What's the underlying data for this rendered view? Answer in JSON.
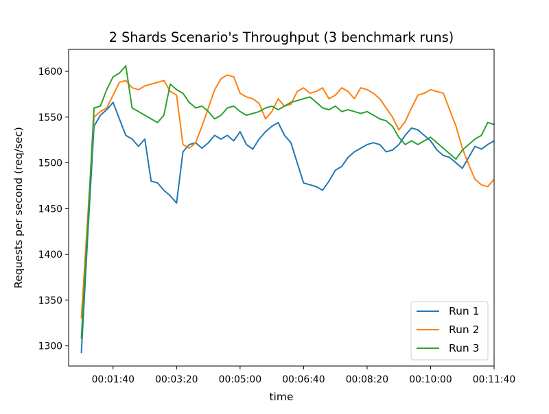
{
  "chart_data": {
    "type": "line",
    "title": "2 Shards Scenario's Throughput (3 benchmark runs)",
    "xlabel": "time",
    "ylabel": "Requests per second (req/sec)",
    "xlim": [
      "00:00:30",
      "00:11:40"
    ],
    "ylim": [
      1278,
      1624
    ],
    "grid": false,
    "legend_position": "lower-right",
    "x_ticks": [
      "00:01:40",
      "00:03:20",
      "00:05:00",
      "00:06:40",
      "00:08:20",
      "00:10:00",
      "00:11:40"
    ],
    "y_ticks": [
      1300,
      1350,
      1400,
      1450,
      1500,
      1550,
      1600
    ],
    "series": [
      {
        "name": "Run 1",
        "color": "#1f77b4",
        "points": [
          [
            "00:00:50",
            1292
          ],
          [
            "00:01:00",
            1420
          ],
          [
            "00:01:10",
            1540
          ],
          [
            "00:01:20",
            1552
          ],
          [
            "00:01:30",
            1558
          ],
          [
            "00:01:40",
            1566
          ],
          [
            "00:01:50",
            1548
          ],
          [
            "00:02:00",
            1530
          ],
          [
            "00:02:10",
            1526
          ],
          [
            "00:02:20",
            1518
          ],
          [
            "00:02:30",
            1526
          ],
          [
            "00:02:40",
            1480
          ],
          [
            "00:02:50",
            1478
          ],
          [
            "00:03:00",
            1470
          ],
          [
            "00:03:10",
            1464
          ],
          [
            "00:03:20",
            1456
          ],
          [
            "00:03:30",
            1512
          ],
          [
            "00:03:40",
            1520
          ],
          [
            "00:03:50",
            1522
          ],
          [
            "00:04:00",
            1516
          ],
          [
            "00:04:10",
            1522
          ],
          [
            "00:04:20",
            1530
          ],
          [
            "00:04:30",
            1526
          ],
          [
            "00:04:40",
            1530
          ],
          [
            "00:04:50",
            1524
          ],
          [
            "00:05:00",
            1534
          ],
          [
            "00:05:10",
            1520
          ],
          [
            "00:05:20",
            1515
          ],
          [
            "00:05:30",
            1526
          ],
          [
            "00:05:40",
            1534
          ],
          [
            "00:05:50",
            1540
          ],
          [
            "00:06:00",
            1544
          ],
          [
            "00:06:10",
            1530
          ],
          [
            "00:06:20",
            1522
          ],
          [
            "00:06:30",
            1500
          ],
          [
            "00:06:40",
            1478
          ],
          [
            "00:06:50",
            1476
          ],
          [
            "00:07:00",
            1474
          ],
          [
            "00:07:10",
            1470
          ],
          [
            "00:07:20",
            1480
          ],
          [
            "00:07:30",
            1492
          ],
          [
            "00:07:40",
            1496
          ],
          [
            "00:07:50",
            1506
          ],
          [
            "00:08:00",
            1512
          ],
          [
            "00:08:10",
            1516
          ],
          [
            "00:08:20",
            1520
          ],
          [
            "00:08:30",
            1522
          ],
          [
            "00:08:40",
            1520
          ],
          [
            "00:08:50",
            1512
          ],
          [
            "00:09:00",
            1514
          ],
          [
            "00:09:10",
            1520
          ],
          [
            "00:09:20",
            1530
          ],
          [
            "00:09:30",
            1538
          ],
          [
            "00:09:40",
            1536
          ],
          [
            "00:09:50",
            1530
          ],
          [
            "00:10:00",
            1524
          ],
          [
            "00:10:10",
            1514
          ],
          [
            "00:10:20",
            1508
          ],
          [
            "00:10:30",
            1506
          ],
          [
            "00:10:40",
            1500
          ],
          [
            "00:10:50",
            1494
          ],
          [
            "00:11:00",
            1506
          ],
          [
            "00:11:10",
            1518
          ],
          [
            "00:11:20",
            1515
          ],
          [
            "00:11:30",
            1520
          ],
          [
            "00:11:40",
            1524
          ]
        ]
      },
      {
        "name": "Run 2",
        "color": "#ff7f0e",
        "points": [
          [
            "00:00:50",
            1330
          ],
          [
            "00:01:00",
            1440
          ],
          [
            "00:01:10",
            1550
          ],
          [
            "00:01:20",
            1556
          ],
          [
            "00:01:30",
            1560
          ],
          [
            "00:01:40",
            1574
          ],
          [
            "00:01:50",
            1588
          ],
          [
            "00:02:00",
            1590
          ],
          [
            "00:02:10",
            1582
          ],
          [
            "00:02:20",
            1580
          ],
          [
            "00:02:30",
            1584
          ],
          [
            "00:02:40",
            1586
          ],
          [
            "00:02:50",
            1588
          ],
          [
            "00:03:00",
            1590
          ],
          [
            "00:03:10",
            1578
          ],
          [
            "00:03:20",
            1574
          ],
          [
            "00:03:30",
            1520
          ],
          [
            "00:03:40",
            1516
          ],
          [
            "00:03:50",
            1522
          ],
          [
            "00:04:00",
            1540
          ],
          [
            "00:04:10",
            1560
          ],
          [
            "00:04:20",
            1580
          ],
          [
            "00:04:30",
            1592
          ],
          [
            "00:04:40",
            1596
          ],
          [
            "00:04:50",
            1594
          ],
          [
            "00:05:00",
            1576
          ],
          [
            "00:05:10",
            1572
          ],
          [
            "00:05:20",
            1570
          ],
          [
            "00:05:30",
            1565
          ],
          [
            "00:05:40",
            1548
          ],
          [
            "00:05:50",
            1556
          ],
          [
            "00:06:00",
            1570
          ],
          [
            "00:06:10",
            1562
          ],
          [
            "00:06:20",
            1564
          ],
          [
            "00:06:30",
            1578
          ],
          [
            "00:06:40",
            1582
          ],
          [
            "00:06:50",
            1576
          ],
          [
            "00:07:00",
            1578
          ],
          [
            "00:07:10",
            1582
          ],
          [
            "00:07:20",
            1570
          ],
          [
            "00:07:30",
            1574
          ],
          [
            "00:07:40",
            1582
          ],
          [
            "00:07:50",
            1578
          ],
          [
            "00:08:00",
            1570
          ],
          [
            "00:08:10",
            1582
          ],
          [
            "00:08:20",
            1580
          ],
          [
            "00:08:30",
            1576
          ],
          [
            "00:08:40",
            1570
          ],
          [
            "00:08:50",
            1560
          ],
          [
            "00:09:00",
            1550
          ],
          [
            "00:09:10",
            1536
          ],
          [
            "00:09:20",
            1545
          ],
          [
            "00:09:30",
            1560
          ],
          [
            "00:09:40",
            1574
          ],
          [
            "00:09:50",
            1576
          ],
          [
            "00:10:00",
            1580
          ],
          [
            "00:10:10",
            1578
          ],
          [
            "00:10:20",
            1576
          ],
          [
            "00:10:30",
            1558
          ],
          [
            "00:10:40",
            1540
          ],
          [
            "00:10:50",
            1516
          ],
          [
            "00:11:00",
            1498
          ],
          [
            "00:11:10",
            1482
          ],
          [
            "00:11:20",
            1476
          ],
          [
            "00:11:30",
            1474
          ],
          [
            "00:11:40",
            1482
          ]
        ]
      },
      {
        "name": "Run 3",
        "color": "#2ca02c",
        "points": [
          [
            "00:00:50",
            1308
          ],
          [
            "00:01:00",
            1430
          ],
          [
            "00:01:10",
            1560
          ],
          [
            "00:01:20",
            1562
          ],
          [
            "00:01:30",
            1580
          ],
          [
            "00:01:40",
            1594
          ],
          [
            "00:01:50",
            1598
          ],
          [
            "00:02:00",
            1606
          ],
          [
            "00:02:10",
            1560
          ],
          [
            "00:02:20",
            1556
          ],
          [
            "00:02:30",
            1552
          ],
          [
            "00:02:40",
            1548
          ],
          [
            "00:02:50",
            1544
          ],
          [
            "00:03:00",
            1552
          ],
          [
            "00:03:10",
            1586
          ],
          [
            "00:03:20",
            1580
          ],
          [
            "00:03:30",
            1576
          ],
          [
            "00:03:40",
            1566
          ],
          [
            "00:03:50",
            1560
          ],
          [
            "00:04:00",
            1562
          ],
          [
            "00:04:10",
            1556
          ],
          [
            "00:04:20",
            1548
          ],
          [
            "00:04:30",
            1552
          ],
          [
            "00:04:40",
            1560
          ],
          [
            "00:04:50",
            1562
          ],
          [
            "00:05:00",
            1556
          ],
          [
            "00:05:10",
            1552
          ],
          [
            "00:05:20",
            1554
          ],
          [
            "00:05:30",
            1556
          ],
          [
            "00:05:40",
            1560
          ],
          [
            "00:05:50",
            1562
          ],
          [
            "00:06:00",
            1558
          ],
          [
            "00:06:10",
            1562
          ],
          [
            "00:06:20",
            1566
          ],
          [
            "00:06:30",
            1568
          ],
          [
            "00:06:40",
            1570
          ],
          [
            "00:06:50",
            1572
          ],
          [
            "00:07:00",
            1566
          ],
          [
            "00:07:10",
            1560
          ],
          [
            "00:07:20",
            1558
          ],
          [
            "00:07:30",
            1562
          ],
          [
            "00:07:40",
            1556
          ],
          [
            "00:07:50",
            1558
          ],
          [
            "00:08:00",
            1556
          ],
          [
            "00:08:10",
            1554
          ],
          [
            "00:08:20",
            1556
          ],
          [
            "00:08:30",
            1552
          ],
          [
            "00:08:40",
            1548
          ],
          [
            "00:08:50",
            1546
          ],
          [
            "00:09:00",
            1540
          ],
          [
            "00:09:10",
            1528
          ],
          [
            "00:09:20",
            1520
          ],
          [
            "00:09:30",
            1524
          ],
          [
            "00:09:40",
            1520
          ],
          [
            "00:09:50",
            1524
          ],
          [
            "00:10:00",
            1528
          ],
          [
            "00:10:10",
            1522
          ],
          [
            "00:10:20",
            1516
          ],
          [
            "00:10:30",
            1510
          ],
          [
            "00:10:40",
            1504
          ],
          [
            "00:10:50",
            1514
          ],
          [
            "00:11:00",
            1520
          ],
          [
            "00:11:10",
            1526
          ],
          [
            "00:11:20",
            1530
          ],
          [
            "00:11:30",
            1544
          ],
          [
            "00:11:40",
            1542
          ]
        ]
      }
    ]
  }
}
